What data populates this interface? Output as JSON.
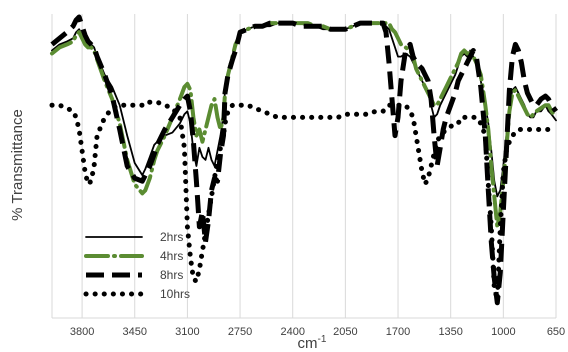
{
  "chart_data": {
    "type": "line",
    "title": "",
    "xlabel": "cm",
    "xlabel_superscript": "-1",
    "ylabel": "% Transmittance",
    "x_axis_reversed": true,
    "xlim": [
      4000,
      650
    ],
    "ylim": [
      0,
      100
    ],
    "xticks": [
      3800,
      3450,
      3100,
      2750,
      2400,
      2050,
      1700,
      1350,
      1000,
      650
    ],
    "grid": "vertical",
    "legend_position": "bottom-left",
    "colors": {
      "2hrs": "#000000",
      "4hrs": "#5b8c32",
      "8hrs": "#000000",
      "10hrs": "#000000"
    },
    "series": [
      {
        "name": "2hrs",
        "style": "solid-thin",
        "x": [
          4000,
          3950,
          3900,
          3860,
          3840,
          3820,
          3800,
          3780,
          3760,
          3740,
          3720,
          3700,
          3650,
          3600,
          3550,
          3500,
          3450,
          3400,
          3380,
          3350,
          3320,
          3300,
          3250,
          3200,
          3150,
          3120,
          3100,
          3080,
          3060,
          3040,
          3020,
          3000,
          2980,
          2960,
          2940,
          2920,
          2900,
          2880,
          2860,
          2850,
          2830,
          2800,
          2780,
          2760,
          2750,
          2700,
          2650,
          2600,
          2550,
          2500,
          2450,
          2400,
          2350,
          2300,
          2250,
          2200,
          2150,
          2100,
          2050,
          2000,
          1950,
          1900,
          1850,
          1800,
          1780,
          1760,
          1740,
          1720,
          1700,
          1680,
          1650,
          1620,
          1600,
          1580,
          1560,
          1540,
          1520,
          1500,
          1480,
          1460,
          1440,
          1420,
          1400,
          1380,
          1350,
          1320,
          1300,
          1280,
          1260,
          1240,
          1220,
          1200,
          1180,
          1150,
          1120,
          1100,
          1080,
          1060,
          1040,
          1020,
          1000,
          980,
          960,
          940,
          920,
          900,
          880,
          860,
          840,
          820,
          800,
          780,
          750,
          720,
          700,
          680,
          650
        ],
        "y": [
          88,
          90,
          91,
          92,
          94,
          95,
          93,
          91,
          90,
          90,
          89,
          86,
          80,
          76,
          70,
          60,
          51,
          47,
          49,
          53,
          57,
          58,
          60,
          61,
          64,
          67,
          68,
          64,
          55,
          50,
          56,
          53,
          52,
          56,
          52,
          50,
          55,
          60,
          67,
          75,
          80,
          86,
          89,
          92,
          94,
          95,
          96,
          96,
          96,
          97,
          97,
          97,
          97,
          96,
          96,
          95,
          95,
          95,
          95,
          96,
          97,
          97,
          97,
          97,
          96,
          95,
          92,
          89,
          86,
          86,
          87,
          86,
          84,
          82,
          80,
          78,
          76,
          74,
          70,
          66,
          67,
          70,
          72,
          74,
          77,
          80,
          83,
          86,
          87,
          86,
          88,
          86,
          84,
          78,
          70,
          64,
          55,
          45,
          40,
          42,
          50,
          60,
          70,
          75,
          76,
          74,
          72,
          70,
          67,
          66,
          66,
          68,
          68,
          70,
          68,
          67,
          65
        ]
      },
      {
        "name": "4hrs",
        "style": "dash-dot-green",
        "x": [
          4000,
          3950,
          3900,
          3860,
          3840,
          3820,
          3800,
          3780,
          3760,
          3740,
          3720,
          3700,
          3650,
          3600,
          3550,
          3500,
          3450,
          3400,
          3380,
          3350,
          3320,
          3300,
          3250,
          3200,
          3150,
          3120,
          3100,
          3080,
          3060,
          3040,
          3020,
          3000,
          2980,
          2960,
          2940,
          2920,
          2900,
          2880,
          2860,
          2850,
          2830,
          2800,
          2780,
          2760,
          2750,
          2700,
          2650,
          2600,
          2550,
          2500,
          2450,
          2400,
          2350,
          2300,
          2250,
          2200,
          2150,
          2100,
          2050,
          2000,
          1950,
          1900,
          1850,
          1800,
          1780,
          1760,
          1740,
          1720,
          1700,
          1680,
          1650,
          1620,
          1600,
          1580,
          1560,
          1540,
          1520,
          1500,
          1480,
          1460,
          1440,
          1420,
          1400,
          1380,
          1350,
          1320,
          1300,
          1280,
          1260,
          1240,
          1220,
          1200,
          1180,
          1150,
          1120,
          1100,
          1080,
          1060,
          1040,
          1020,
          1000,
          980,
          960,
          940,
          920,
          900,
          880,
          860,
          840,
          820,
          800,
          780,
          750,
          720,
          700,
          680,
          650
        ],
        "y": [
          87,
          89,
          90,
          91,
          93,
          94,
          92,
          90,
          89,
          89,
          88,
          85,
          78,
          72,
          64,
          52,
          44,
          41,
          42,
          46,
          52,
          55,
          60,
          66,
          72,
          76,
          77,
          75,
          66,
          60,
          62,
          58,
          62,
          66,
          70,
          72,
          66,
          62,
          66,
          74,
          80,
          86,
          90,
          92,
          94,
          95,
          96,
          96,
          97,
          97,
          97,
          97,
          97,
          97,
          96,
          96,
          95,
          95,
          95,
          96,
          97,
          97,
          97,
          97,
          97,
          97,
          95,
          94,
          92,
          90,
          89,
          88,
          86,
          82,
          80,
          78,
          76,
          74,
          72,
          70,
          70,
          72,
          74,
          76,
          79,
          82,
          84,
          87,
          88,
          87,
          88,
          86,
          84,
          80,
          70,
          62,
          50,
          40,
          30,
          35,
          45,
          56,
          68,
          74,
          75,
          73,
          71,
          69,
          67,
          66,
          67,
          68,
          69,
          70,
          70,
          68,
          66
        ]
      },
      {
        "name": "8hrs",
        "style": "long-dash",
        "x": [
          4000,
          3950,
          3900,
          3860,
          3840,
          3820,
          3800,
          3780,
          3760,
          3740,
          3720,
          3700,
          3650,
          3600,
          3550,
          3500,
          3450,
          3400,
          3380,
          3350,
          3320,
          3300,
          3250,
          3200,
          3150,
          3120,
          3100,
          3080,
          3060,
          3040,
          3020,
          3000,
          2980,
          2960,
          2940,
          2920,
          2900,
          2880,
          2860,
          2850,
          2830,
          2800,
          2780,
          2760,
          2750,
          2700,
          2650,
          2600,
          2550,
          2500,
          2450,
          2400,
          2350,
          2300,
          2250,
          2200,
          2150,
          2100,
          2050,
          2000,
          1950,
          1900,
          1850,
          1800,
          1780,
          1760,
          1740,
          1720,
          1700,
          1680,
          1650,
          1620,
          1600,
          1580,
          1560,
          1540,
          1520,
          1500,
          1480,
          1460,
          1440,
          1420,
          1400,
          1380,
          1350,
          1320,
          1300,
          1280,
          1260,
          1240,
          1220,
          1200,
          1180,
          1150,
          1120,
          1100,
          1080,
          1060,
          1040,
          1020,
          1000,
          980,
          960,
          940,
          920,
          900,
          880,
          860,
          840,
          820,
          800,
          780,
          750,
          720,
          700,
          680,
          650
        ],
        "y": [
          90,
          92,
          94,
          96,
          98,
          99,
          96,
          93,
          91,
          90,
          89,
          86,
          80,
          73,
          62,
          50,
          46,
          45,
          47,
          50,
          54,
          57,
          62,
          66,
          70,
          72,
          73,
          68,
          58,
          45,
          30,
          35,
          25,
          32,
          42,
          46,
          45,
          54,
          60,
          74,
          80,
          85,
          88,
          92,
          94,
          95,
          96,
          96,
          97,
          97,
          97,
          97,
          96,
          96,
          96,
          96,
          95,
          95,
          95,
          96,
          97,
          97,
          97,
          97,
          94,
          84,
          72,
          60,
          66,
          78,
          88,
          90,
          86,
          84,
          83,
          82,
          80,
          78,
          72,
          60,
          50,
          56,
          62,
          66,
          70,
          74,
          78,
          80,
          82,
          84,
          86,
          88,
          86,
          76,
          60,
          42,
          25,
          13,
          5,
          15,
          35,
          55,
          75,
          86,
          90,
          88,
          84,
          78,
          74,
          72,
          70,
          70,
          72,
          73,
          72,
          70,
          68
        ]
      },
      {
        "name": "10hrs",
        "style": "dotted",
        "x": [
          4000,
          3950,
          3900,
          3860,
          3840,
          3820,
          3800,
          3780,
          3760,
          3740,
          3720,
          3700,
          3650,
          3600,
          3550,
          3500,
          3450,
          3400,
          3380,
          3350,
          3320,
          3300,
          3250,
          3200,
          3150,
          3120,
          3100,
          3080,
          3060,
          3040,
          3020,
          3000,
          2980,
          2960,
          2940,
          2920,
          2900,
          2880,
          2860,
          2850,
          2830,
          2800,
          2780,
          2760,
          2750,
          2700,
          2650,
          2600,
          2550,
          2500,
          2450,
          2400,
          2350,
          2300,
          2250,
          2200,
          2150,
          2100,
          2050,
          2000,
          1950,
          1900,
          1850,
          1800,
          1780,
          1760,
          1740,
          1720,
          1700,
          1680,
          1650,
          1620,
          1600,
          1580,
          1560,
          1540,
          1520,
          1500,
          1480,
          1460,
          1440,
          1420,
          1400,
          1380,
          1350,
          1320,
          1300,
          1280,
          1260,
          1240,
          1220,
          1200,
          1180,
          1150,
          1120,
          1100,
          1080,
          1060,
          1040,
          1020,
          1000,
          980,
          960,
          940,
          920,
          900,
          880,
          860,
          840,
          820,
          800,
          780,
          750,
          720,
          700,
          680,
          650
        ],
        "y": [
          70,
          70,
          69,
          68,
          66,
          62,
          55,
          48,
          44,
          45,
          50,
          60,
          66,
          69,
          70,
          70,
          70,
          70,
          71,
          71,
          71,
          71,
          70,
          69,
          66,
          56,
          30,
          20,
          13,
          12,
          16,
          22,
          28,
          34,
          40,
          46,
          52,
          56,
          60,
          64,
          68,
          70,
          70,
          70,
          70,
          70,
          69,
          68,
          67,
          66,
          66,
          66,
          66,
          66,
          66,
          66,
          66,
          66,
          67,
          67,
          67,
          67,
          68,
          68,
          69,
          70,
          70,
          70,
          70,
          70,
          70,
          68,
          66,
          60,
          54,
          48,
          44,
          46,
          50,
          54,
          58,
          60,
          61,
          62,
          63,
          64,
          64,
          66,
          66,
          66,
          66,
          66,
          66,
          64,
          60,
          44,
          30,
          10,
          6,
          30,
          48,
          55,
          58,
          60,
          61,
          62,
          62,
          62,
          62,
          62,
          62,
          62,
          62,
          62,
          62,
          62,
          62
        ]
      }
    ]
  }
}
